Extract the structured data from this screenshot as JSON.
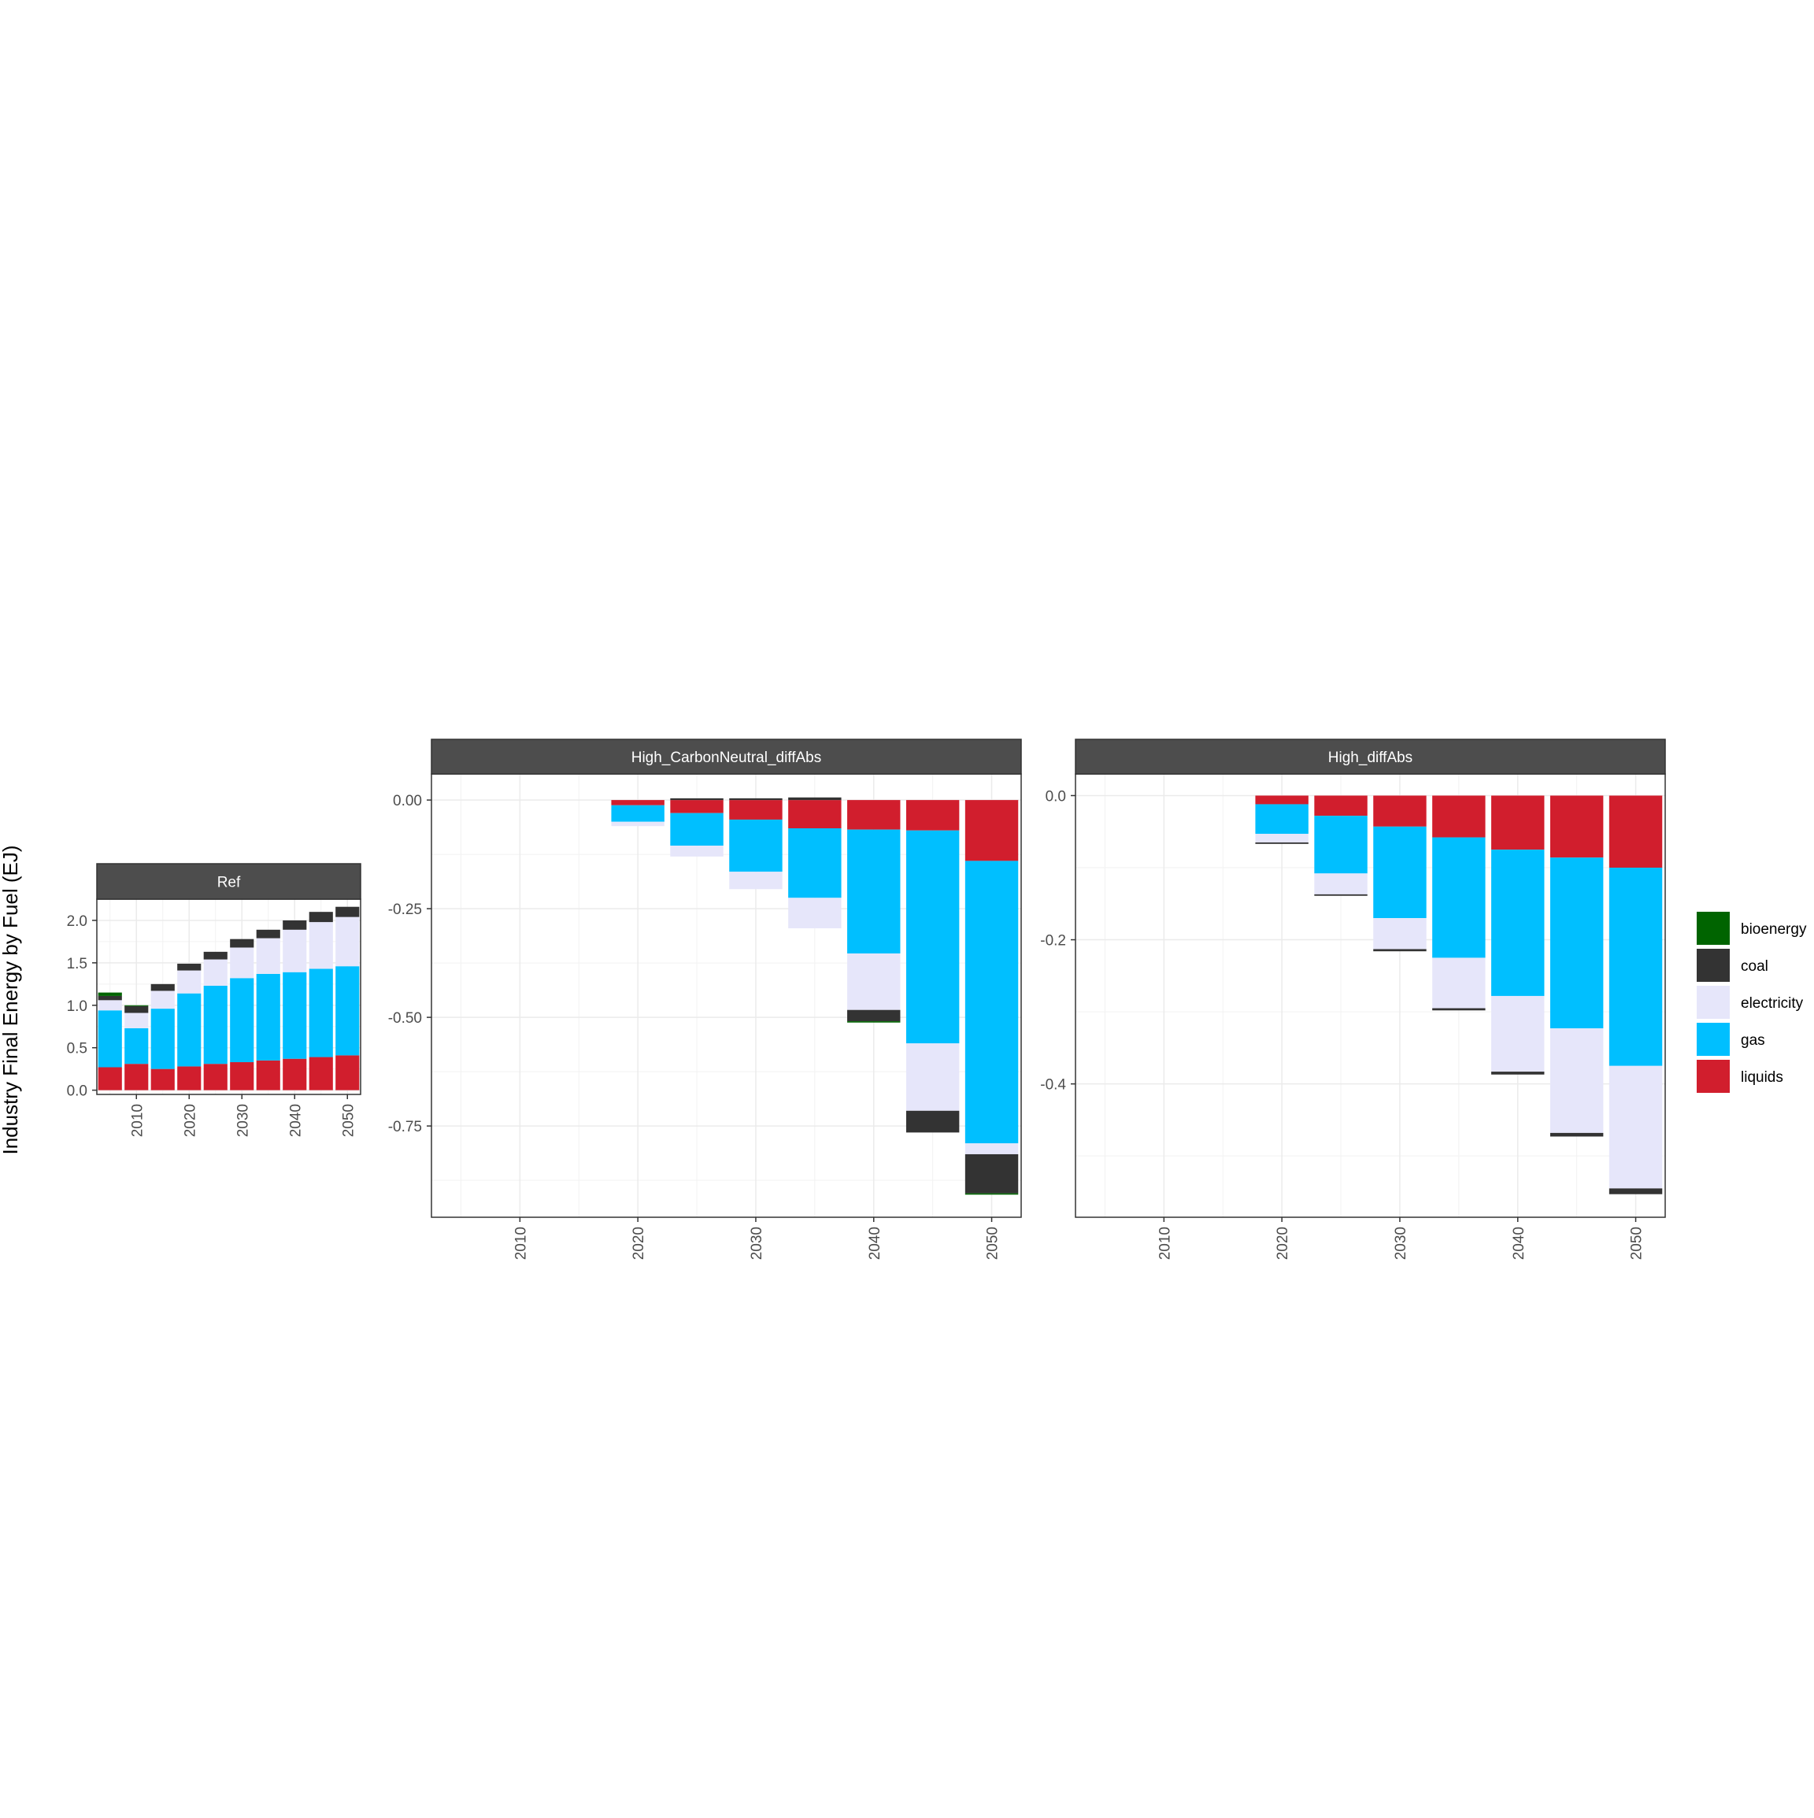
{
  "chart_data": {
    "type": "bar",
    "ylabel": "Industry Final Energy by Fuel (EJ)",
    "fuels": [
      "bioenergy",
      "coal",
      "electricity",
      "gas",
      "liquids"
    ],
    "colors": {
      "bioenergy": "#006400",
      "coal": "#333333",
      "electricity": "#e6e6fa",
      "gas": "#00bfff",
      "liquids": "#d11e2d"
    },
    "legend": {
      "position": "right",
      "entries": [
        "bioenergy",
        "coal",
        "electricity",
        "gas",
        "liquids"
      ]
    },
    "panels": [
      {
        "name": "Ref",
        "ylim": [
          -0.05,
          2.25
        ],
        "yticks": [
          0.0,
          0.5,
          1.0,
          1.5,
          2.0
        ],
        "ytick_labels": [
          "0.0",
          "0.5",
          "1.0",
          "1.5",
          "2.0"
        ],
        "xlim": [
          2002.5,
          2052.5
        ],
        "xticks": [
          2010,
          2020,
          2030,
          2040,
          2050
        ],
        "xtick_labels": [
          "2010",
          "2020",
          "2030",
          "2040",
          "2050"
        ],
        "x": [
          2005,
          2010,
          2015,
          2020,
          2025,
          2030,
          2035,
          2040,
          2045,
          2050
        ],
        "series": [
          {
            "name": "liquids",
            "values": [
              0.27,
              0.31,
              0.25,
              0.28,
              0.31,
              0.33,
              0.35,
              0.37,
              0.39,
              0.41
            ]
          },
          {
            "name": "gas",
            "values": [
              0.67,
              0.42,
              0.71,
              0.86,
              0.92,
              0.99,
              1.02,
              1.02,
              1.04,
              1.05
            ]
          },
          {
            "name": "electricity",
            "values": [
              0.12,
              0.18,
              0.21,
              0.27,
              0.31,
              0.36,
              0.42,
              0.5,
              0.55,
              0.58
            ]
          },
          {
            "name": "coal",
            "values": [
              0.05,
              0.08,
              0.08,
              0.08,
              0.09,
              0.1,
              0.1,
              0.11,
              0.12,
              0.12
            ]
          },
          {
            "name": "bioenergy",
            "values": [
              0.04,
              0.01,
              0.0,
              0.0,
              0.0,
              0.0,
              0.0,
              0.0,
              0.0,
              0.0
            ]
          }
        ]
      },
      {
        "name": "High_CarbonNeutral_diffAbs",
        "ylim": [
          -0.96,
          0.06
        ],
        "yticks": [
          0.0,
          -0.25,
          -0.5,
          -0.75
        ],
        "ytick_labels": [
          "0.00",
          "-0.25",
          "-0.50",
          "-0.75"
        ],
        "xlim": [
          2002.5,
          2052.5
        ],
        "xticks": [
          2010,
          2020,
          2030,
          2040,
          2050
        ],
        "xtick_labels": [
          "2010",
          "2020",
          "2030",
          "2040",
          "2050"
        ],
        "x": [
          2020,
          2025,
          2030,
          2035,
          2040,
          2045,
          2050
        ],
        "series": [
          {
            "name": "liquids",
            "values": [
              -0.012,
              -0.03,
              -0.045,
              -0.065,
              -0.068,
              -0.07,
              -0.14
            ]
          },
          {
            "name": "gas",
            "values": [
              -0.038,
              -0.075,
              -0.12,
              -0.16,
              -0.285,
              -0.49,
              -0.65
            ]
          },
          {
            "name": "electricity",
            "values": [
              -0.01,
              -0.025,
              -0.04,
              -0.07,
              -0.13,
              -0.155,
              -0.025
            ]
          },
          {
            "name": "coal",
            "values": [
              0.0,
              0.004,
              0.004,
              0.006,
              -0.026,
              -0.05,
              -0.09
            ]
          },
          {
            "name": "bioenergy",
            "values": [
              0.0,
              0.0,
              0.0,
              0.0,
              -0.003,
              0.0,
              -0.003
            ]
          }
        ]
      },
      {
        "name": "High_diffAbs",
        "ylim": [
          -0.585,
          0.03
        ],
        "yticks": [
          0.0,
          -0.2,
          -0.4
        ],
        "ytick_labels": [
          "0.0",
          "-0.2",
          "-0.4"
        ],
        "xlim": [
          2002.5,
          2052.5
        ],
        "xticks": [
          2010,
          2020,
          2030,
          2040,
          2050
        ],
        "xtick_labels": [
          "2010",
          "2020",
          "2030",
          "2040",
          "2050"
        ],
        "x": [
          2020,
          2025,
          2030,
          2035,
          2040,
          2045,
          2050
        ],
        "series": [
          {
            "name": "liquids",
            "values": [
              -0.012,
              -0.028,
              -0.043,
              -0.058,
              -0.075,
              -0.086,
              -0.1
            ]
          },
          {
            "name": "gas",
            "values": [
              -0.041,
              -0.08,
              -0.127,
              -0.167,
              -0.203,
              -0.237,
              -0.275
            ]
          },
          {
            "name": "electricity",
            "values": [
              -0.012,
              -0.029,
              -0.043,
              -0.07,
              -0.105,
              -0.145,
              -0.17
            ]
          },
          {
            "name": "coal",
            "values": [
              -0.002,
              -0.002,
              -0.003,
              -0.003,
              -0.004,
              -0.005,
              -0.008
            ]
          },
          {
            "name": "bioenergy",
            "values": [
              0.0,
              0.0,
              0.0,
              0.0,
              0.0,
              0.0,
              0.0
            ]
          }
        ]
      }
    ]
  }
}
